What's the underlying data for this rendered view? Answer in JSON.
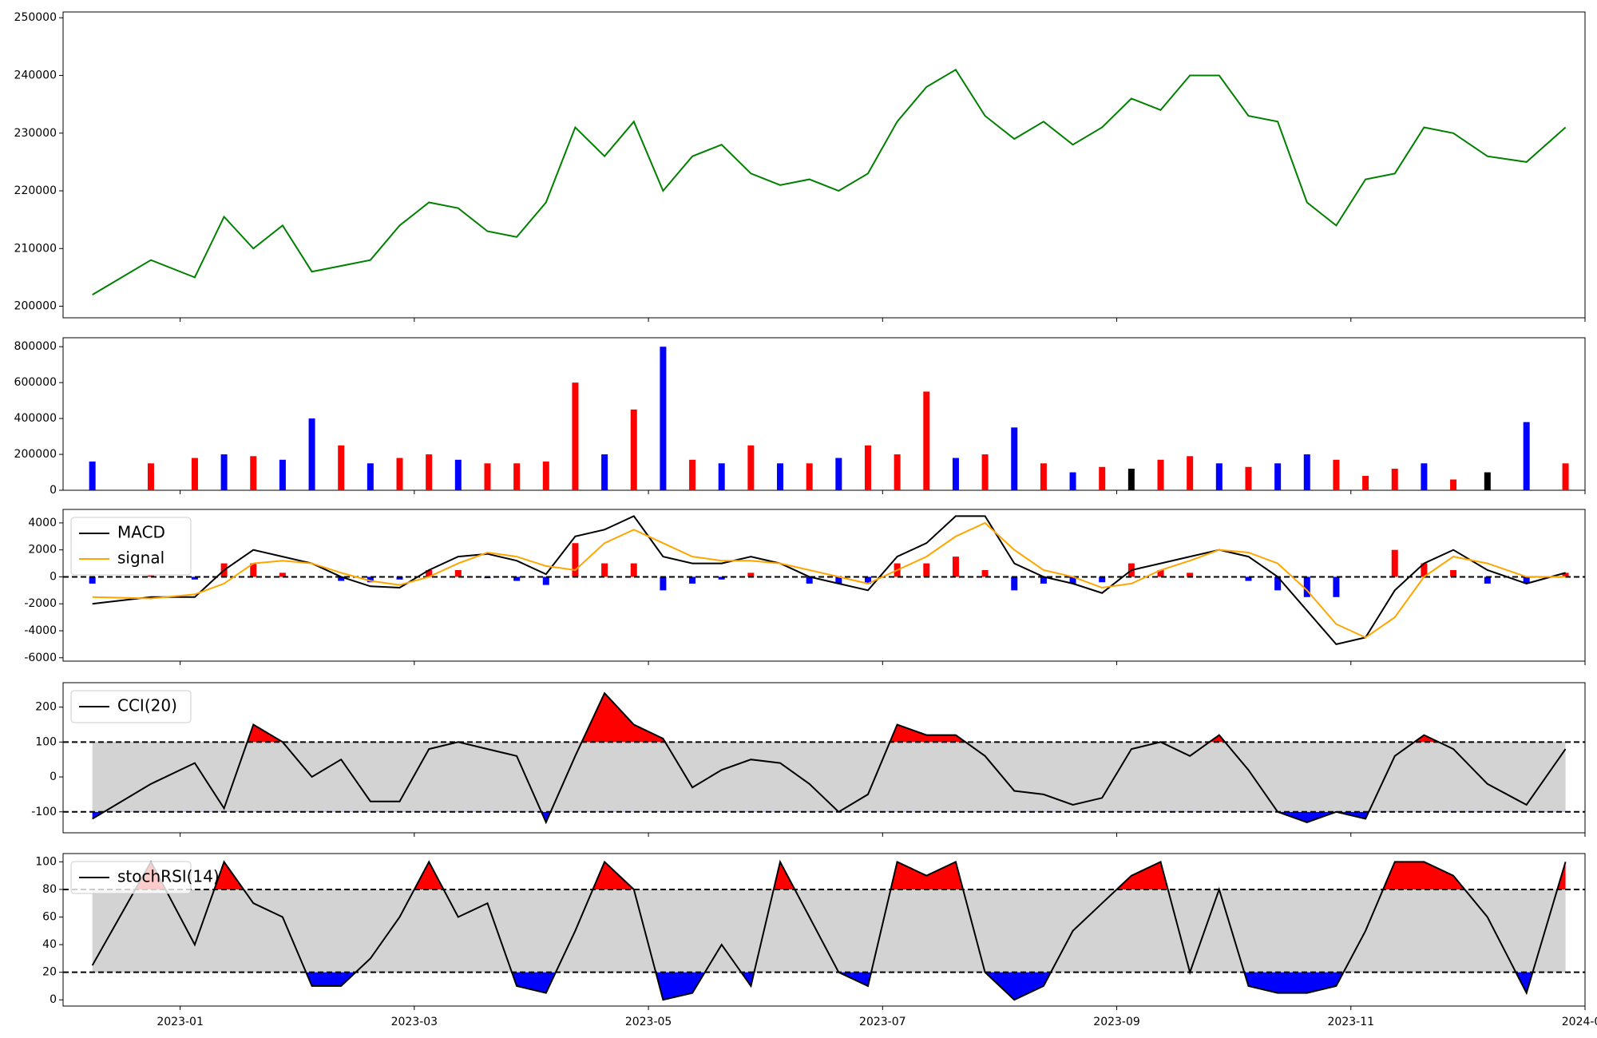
{
  "chart_data": [
    {
      "type": "line",
      "series": [
        {
          "name": "close",
          "color": "#008000",
          "values": [
            202000,
            208000,
            205000,
            215500,
            210000,
            214000,
            206000,
            207000,
            208000,
            214000,
            218000,
            217000,
            213000,
            212000,
            218000,
            231000,
            226000,
            232000,
            220000,
            226000,
            228000,
            223000,
            221000,
            222000,
            220000,
            223000,
            232000,
            238000,
            241000,
            233000,
            229000,
            232000,
            228000,
            231000,
            236000,
            234000,
            240000,
            240000,
            233000,
            232000,
            218000,
            214000,
            222000,
            223000,
            231000,
            230000,
            226000,
            225000,
            231000
          ]
        }
      ],
      "ylim": [
        198000,
        251000
      ],
      "yticks": [
        200000,
        210000,
        220000,
        230000,
        240000,
        250000
      ]
    },
    {
      "type": "bar",
      "values": [
        160000,
        150000,
        180000,
        200000,
        190000,
        170000,
        400000,
        250000,
        150000,
        180000,
        200000,
        170000,
        150000,
        150000,
        160000,
        600000,
        200000,
        450000,
        800000,
        170000,
        150000,
        250000,
        150000,
        150000,
        180000,
        250000,
        200000,
        550000,
        180000,
        200000,
        350000,
        150000,
        100000,
        130000,
        120000,
        170000,
        190000,
        150000,
        130000,
        150000,
        200000,
        170000,
        80000,
        120000,
        150000,
        60000,
        100000,
        380000,
        150000
      ],
      "colors": [
        "#0000ff",
        "#ff0000",
        "#ff0000",
        "#0000ff",
        "#ff0000",
        "#0000ff",
        "#0000ff",
        "#ff0000",
        "#0000ff",
        "#ff0000",
        "#ff0000",
        "#0000ff",
        "#ff0000",
        "#ff0000",
        "#ff0000",
        "#ff0000",
        "#0000ff",
        "#ff0000",
        "#0000ff",
        "#ff0000",
        "#0000ff",
        "#ff0000",
        "#0000ff",
        "#ff0000",
        "#0000ff",
        "#ff0000",
        "#ff0000",
        "#ff0000",
        "#0000ff",
        "#ff0000",
        "#0000ff",
        "#ff0000",
        "#0000ff",
        "#ff0000",
        "#000000",
        "#ff0000",
        "#ff0000",
        "#0000ff",
        "#ff0000",
        "#0000ff",
        "#0000ff",
        "#ff0000",
        "#ff0000",
        "#ff0000",
        "#0000ff",
        "#ff0000",
        "#000000",
        "#0000ff",
        "#ff0000"
      ],
      "ylim": [
        0,
        850000
      ],
      "yticks": [
        0,
        200000,
        400000,
        600000,
        800000
      ]
    },
    {
      "type": "macd",
      "series": [
        {
          "name": "MACD",
          "color": "#000000",
          "values": [
            -2000,
            -1500,
            -1500,
            500,
            2000,
            1500,
            1000,
            0,
            -700,
            -800,
            500,
            1500,
            1700,
            1200,
            200,
            3000,
            3500,
            4500,
            1500,
            1000,
            1000,
            1500,
            1000,
            0,
            -500,
            -1000,
            1500,
            2500,
            4500,
            4500,
            1000,
            0,
            -500,
            -1200,
            500,
            1000,
            1500,
            2000,
            1500,
            0,
            -2500,
            -5000,
            -4500,
            -1000,
            1000,
            2000,
            500,
            -500,
            300
          ]
        },
        {
          "name": "signal",
          "color": "#ffa500",
          "values": [
            -1500,
            -1600,
            -1300,
            -500,
            1000,
            1200,
            1000,
            300,
            -300,
            -600,
            0,
            1000,
            1800,
            1500,
            800,
            500,
            2500,
            3500,
            2500,
            1500,
            1200,
            1200,
            1000,
            500,
            0,
            -500,
            500,
            1500,
            3000,
            4000,
            2000,
            500,
            0,
            -800,
            -500,
            500,
            1200,
            2000,
            1800,
            1000,
            -1000,
            -3500,
            -4500,
            -3000,
            0,
            1500,
            1000,
            0,
            0
          ]
        }
      ],
      "histogram": [
        -500,
        100,
        -200,
        1000,
        1000,
        300,
        0,
        -300,
        -400,
        -200,
        500,
        500,
        -100,
        -300,
        -600,
        2500,
        1000,
        1000,
        -1000,
        -500,
        -200,
        300,
        0,
        -500,
        -500,
        -500,
        1000,
        1000,
        1500,
        500,
        -1000,
        -500,
        -500,
        -400,
        1000,
        500,
        300,
        0,
        -300,
        -1000,
        -1500,
        -1500,
        0,
        2000,
        1000,
        500,
        -500,
        -500,
        300
      ],
      "positive_color": "#ff0000",
      "negative_color": "#0000ff",
      "hline": 0,
      "ylim": [
        -6250,
        5000
      ],
      "yticks": [
        -6000,
        -4000,
        -2000,
        0,
        2000,
        4000
      ],
      "legend": "upper-left"
    },
    {
      "type": "oscillator",
      "series": [
        {
          "name": "CCI(20)",
          "color": "#000000",
          "values": [
            -120,
            -20,
            40,
            -90,
            150,
            100,
            0,
            50,
            -70,
            -70,
            80,
            100,
            80,
            60,
            -130,
            60,
            240,
            150,
            110,
            -30,
            20,
            50,
            40,
            -20,
            -100,
            -50,
            150,
            120,
            120,
            60,
            -40,
            -50,
            -80,
            -60,
            80,
            100,
            60,
            120,
            20,
            -100,
            -130,
            -100,
            -120,
            60,
            120,
            80,
            -20,
            -80,
            80
          ]
        }
      ],
      "thresholds": [
        -100,
        100
      ],
      "band_color": "#d3d3d3",
      "above_color": "#ff0000",
      "below_color": "#0000ff",
      "ylim": [
        -160,
        270
      ],
      "yticks": [
        -100,
        0,
        100,
        200
      ],
      "legend": "upper-left"
    },
    {
      "type": "oscillator",
      "series": [
        {
          "name": "stochRSI(14)",
          "color": "#000000",
          "values": [
            25,
            100,
            40,
            100,
            70,
            60,
            10,
            10,
            30,
            60,
            100,
            60,
            70,
            10,
            5,
            50,
            100,
            80,
            0,
            5,
            40,
            10,
            100,
            60,
            20,
            10,
            100,
            90,
            100,
            20,
            0,
            10,
            50,
            70,
            90,
            100,
            20,
            80,
            10,
            5,
            5,
            10,
            50,
            100,
            100,
            90,
            60,
            5,
            100
          ]
        }
      ],
      "thresholds": [
        20,
        80
      ],
      "band_color": "#d3d3d3",
      "above_color": "#ff0000",
      "below_color": "#0000ff",
      "ylim": [
        -4.5,
        106
      ],
      "yticks": [
        0,
        20,
        40,
        60,
        80,
        100
      ],
      "legend": "upper-left",
      "x": [
        "2022-12",
        "2022-12",
        "2023-01",
        "2023-01",
        "2023-01",
        "2023-01",
        "2023-02",
        "2023-02",
        "2023-02",
        "2023-02",
        "2023-03",
        "2023-03",
        "2023-03",
        "2023-03",
        "2023-04",
        "2023-04",
        "2023-04",
        "2023-04",
        "2023-05",
        "2023-05",
        "2023-05",
        "2023-05",
        "2023-06",
        "2023-06",
        "2023-06",
        "2023-06",
        "2023-07",
        "2023-07",
        "2023-07",
        "2023-07",
        "2023-08",
        "2023-08",
        "2023-08",
        "2023-08",
        "2023-09",
        "2023-09",
        "2023-09",
        "2023-09",
        "2023-10",
        "2023-10",
        "2023-10",
        "2023-10",
        "2023-11",
        "2023-11",
        "2023-11",
        "2023-11",
        "2023-12",
        "2023-12",
        "2023-12"
      ],
      "xlim": [
        "2022-12",
        "2024-01"
      ],
      "xticks": [
        "2023-01",
        "2023-03",
        "2023-05",
        "2023-07",
        "2023-09",
        "2023-11",
        "2024-01"
      ]
    }
  ]
}
